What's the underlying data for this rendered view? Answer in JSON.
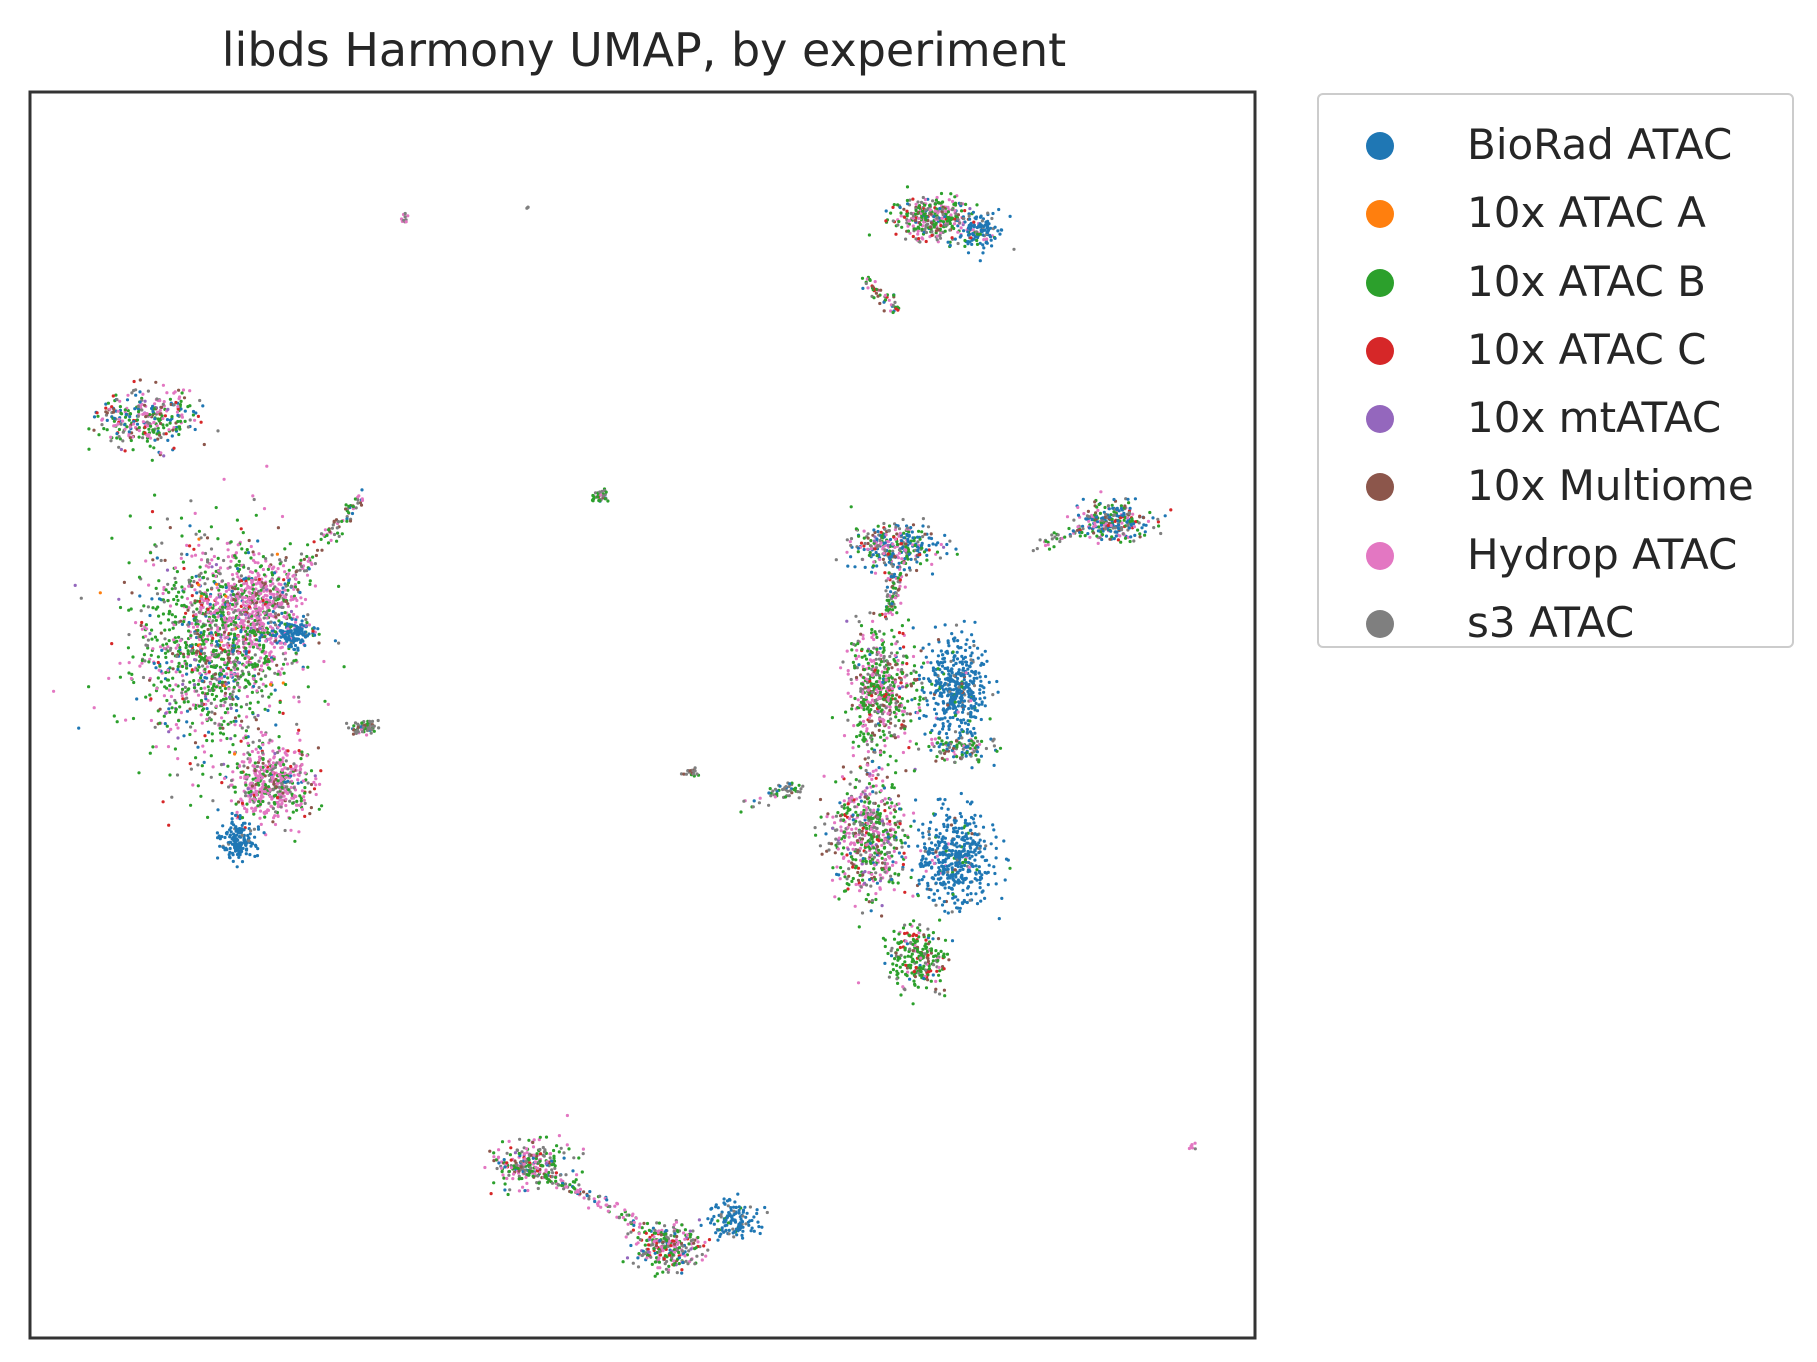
{
  "chart_data": {
    "type": "scatter",
    "title": "libds Harmony UMAP, by experiment",
    "xlabel": "",
    "ylabel": "",
    "xlim": [
      0,
      100
    ],
    "ylim": [
      0,
      100
    ],
    "ticks": "none",
    "grid": false,
    "legend_position": "outside-right",
    "series": [
      {
        "name": "BioRad ATAC",
        "color": "#1f77b4"
      },
      {
        "name": "10x ATAC A",
        "color": "#ff7f0e"
      },
      {
        "name": "10x ATAC B",
        "color": "#2ca02c"
      },
      {
        "name": "10x ATAC C",
        "color": "#d62728"
      },
      {
        "name": "10x mtATAC",
        "color": "#9467bd"
      },
      {
        "name": "10x Multiome",
        "color": "#8c564b"
      },
      {
        "name": "Hydrop ATAC",
        "color": "#e377c2"
      },
      {
        "name": "s3 ATAC",
        "color": "#7f7f7f"
      }
    ],
    "clusters": [
      {
        "cx": 15.0,
        "cy": 55.5,
        "rx": 6.5,
        "ry": 8.5,
        "n": 1400,
        "w": [
          0.08,
          0.01,
          0.4,
          0.05,
          0.03,
          0.05,
          0.25,
          0.13
        ]
      },
      {
        "cx": 18.5,
        "cy": 58.5,
        "rx": 3.5,
        "ry": 4.5,
        "n": 500,
        "w": [
          0.02,
          0.0,
          0.15,
          0.02,
          0.01,
          0.05,
          0.65,
          0.1
        ]
      },
      {
        "cx": 19.8,
        "cy": 44.5,
        "rx": 3.3,
        "ry": 3.0,
        "n": 500,
        "w": [
          0.02,
          0.0,
          0.22,
          0.05,
          0.02,
          0.06,
          0.5,
          0.13
        ]
      },
      {
        "cx": 17.0,
        "cy": 40.0,
        "rx": 1.4,
        "ry": 1.5,
        "n": 160,
        "w": [
          0.95,
          0,
          0,
          0,
          0,
          0,
          0,
          0.05
        ]
      },
      {
        "cx": 21.5,
        "cy": 56.5,
        "rx": 1.6,
        "ry": 1.2,
        "n": 140,
        "w": [
          0.95,
          0,
          0,
          0,
          0,
          0,
          0,
          0.05
        ]
      },
      {
        "cx": 27.2,
        "cy": 49.0,
        "rx": 1.3,
        "ry": 0.5,
        "n": 70,
        "w": [
          0.05,
          0,
          0.15,
          0,
          0,
          0.1,
          0.1,
          0.6
        ]
      },
      {
        "cx": 9.5,
        "cy": 73.8,
        "rx": 4.0,
        "ry": 2.4,
        "n": 320,
        "w": [
          0.15,
          0,
          0.3,
          0.05,
          0.02,
          0.08,
          0.25,
          0.15
        ]
      },
      {
        "cx": 73.5,
        "cy": 89.8,
        "rx": 3.0,
        "ry": 1.7,
        "n": 350,
        "w": [
          0.05,
          0,
          0.3,
          0.08,
          0.02,
          0.08,
          0.25,
          0.22
        ]
      },
      {
        "cx": 77.5,
        "cy": 89.0,
        "rx": 2.0,
        "ry": 1.5,
        "n": 140,
        "w": [
          0.75,
          0,
          0.1,
          0,
          0,
          0,
          0.05,
          0.1
        ]
      },
      {
        "cx": 70.5,
        "cy": 63.5,
        "rx": 3.5,
        "ry": 1.8,
        "n": 320,
        "w": [
          0.35,
          0,
          0.2,
          0.05,
          0.02,
          0.08,
          0.15,
          0.15
        ]
      },
      {
        "cx": 69.5,
        "cy": 52.0,
        "rx": 2.8,
        "ry": 5.0,
        "n": 550,
        "w": [
          0.02,
          0,
          0.35,
          0.05,
          0.02,
          0.12,
          0.28,
          0.16
        ]
      },
      {
        "cx": 75.5,
        "cy": 52.0,
        "rx": 2.5,
        "ry": 4.0,
        "n": 450,
        "w": [
          0.85,
          0,
          0.05,
          0,
          0,
          0.02,
          0.03,
          0.05
        ]
      },
      {
        "cx": 76.0,
        "cy": 47.3,
        "rx": 3.0,
        "ry": 1.0,
        "n": 110,
        "w": [
          0.15,
          0,
          0.3,
          0,
          0,
          0.1,
          0.15,
          0.3
        ]
      },
      {
        "cx": 68.5,
        "cy": 40.5,
        "rx": 3.0,
        "ry": 5.0,
        "n": 600,
        "w": [
          0.05,
          0,
          0.3,
          0.05,
          0.02,
          0.12,
          0.3,
          0.16
        ]
      },
      {
        "cx": 75.5,
        "cy": 38.5,
        "rx": 3.2,
        "ry": 3.8,
        "n": 480,
        "w": [
          0.88,
          0,
          0.04,
          0,
          0,
          0.02,
          0.02,
          0.04
        ]
      },
      {
        "cx": 72.5,
        "cy": 30.5,
        "rx": 2.4,
        "ry": 2.5,
        "n": 250,
        "w": [
          0.05,
          0,
          0.55,
          0.1,
          0,
          0.08,
          0.1,
          0.12
        ]
      },
      {
        "cx": 88.5,
        "cy": 65.5,
        "rx": 2.8,
        "ry": 1.6,
        "n": 280,
        "w": [
          0.3,
          0,
          0.2,
          0.05,
          0,
          0.08,
          0.15,
          0.22
        ]
      },
      {
        "cx": 41.0,
        "cy": 14.0,
        "rx": 3.0,
        "ry": 1.8,
        "n": 240,
        "w": [
          0.05,
          0,
          0.35,
          0.05,
          0.02,
          0.05,
          0.3,
          0.18
        ]
      },
      {
        "cx": 52.0,
        "cy": 7.3,
        "rx": 2.6,
        "ry": 2.0,
        "n": 300,
        "w": [
          0.05,
          0,
          0.3,
          0.08,
          0.02,
          0.05,
          0.25,
          0.25
        ]
      },
      {
        "cx": 57.5,
        "cy": 9.5,
        "rx": 2.0,
        "ry": 1.4,
        "n": 140,
        "w": [
          0.85,
          0,
          0.05,
          0,
          0,
          0,
          0,
          0.1
        ]
      },
      {
        "cx": 46.5,
        "cy": 67.5,
        "rx": 0.7,
        "ry": 0.5,
        "n": 40,
        "w": [
          0.1,
          0,
          0.4,
          0,
          0,
          0.1,
          0.05,
          0.35
        ]
      },
      {
        "cx": 54.0,
        "cy": 45.4,
        "rx": 0.7,
        "ry": 0.3,
        "n": 20,
        "w": [
          0,
          0,
          0.3,
          0,
          0,
          0.2,
          0,
          0.5
        ]
      },
      {
        "cx": 62.0,
        "cy": 44.0,
        "rx": 1.0,
        "ry": 0.6,
        "n": 30,
        "w": [
          0.1,
          0,
          0.1,
          0,
          0,
          0.1,
          0.1,
          0.6
        ]
      },
      {
        "cx": 30.6,
        "cy": 89.9,
        "rx": 0.3,
        "ry": 0.5,
        "n": 12,
        "w": [
          0,
          0,
          0,
          0,
          0,
          0,
          0.4,
          0.6
        ]
      },
      {
        "cx": 40.6,
        "cy": 90.7,
        "rx": 0.1,
        "ry": 0.1,
        "n": 3,
        "w": [
          0,
          0,
          0,
          0,
          0,
          0,
          0,
          1.0
        ]
      },
      {
        "cx": 94.9,
        "cy": 15.3,
        "rx": 0.3,
        "ry": 0.3,
        "n": 6,
        "w": [
          0,
          0,
          0,
          0,
          0,
          0,
          0.6,
          0.4
        ]
      }
    ],
    "streaks": [
      {
        "from": [
          27.0,
          67.5
        ],
        "to": [
          20.0,
          59.0
        ],
        "n": 120,
        "w": [
          0.05,
          0,
          0.3,
          0,
          0,
          0.15,
          0.2,
          0.3
        ]
      },
      {
        "from": [
          71.0,
          82.5
        ],
        "to": [
          68.0,
          85.0
        ],
        "n": 50,
        "w": [
          0.1,
          0,
          0.3,
          0.1,
          0,
          0.1,
          0.2,
          0.2
        ]
      },
      {
        "from": [
          70.0,
          58.0
        ],
        "to": [
          71.0,
          62.0
        ],
        "n": 80,
        "w": [
          0.1,
          0,
          0.3,
          0.05,
          0,
          0.15,
          0.2,
          0.2
        ]
      },
      {
        "from": [
          37.5,
          14.5
        ],
        "to": [
          44.5,
          12.0
        ],
        "n": 80,
        "w": [
          0.1,
          0,
          0.4,
          0,
          0,
          0.1,
          0.2,
          0.2
        ]
      },
      {
        "from": [
          44.5,
          12.0
        ],
        "to": [
          50.0,
          9.0
        ],
        "n": 60,
        "w": [
          0.05,
          0,
          0.2,
          0,
          0,
          0.05,
          0.5,
          0.2
        ]
      },
      {
        "from": [
          82.0,
          63.5
        ],
        "to": [
          86.0,
          65.0
        ],
        "n": 30,
        "w": [
          0.1,
          0,
          0.3,
          0,
          0,
          0.1,
          0.1,
          0.4
        ]
      },
      {
        "from": [
          58.0,
          42.5
        ],
        "to": [
          62.0,
          44.0
        ],
        "n": 25,
        "w": [
          0.1,
          0,
          0.3,
          0,
          0,
          0.1,
          0.1,
          0.4
        ]
      }
    ]
  }
}
